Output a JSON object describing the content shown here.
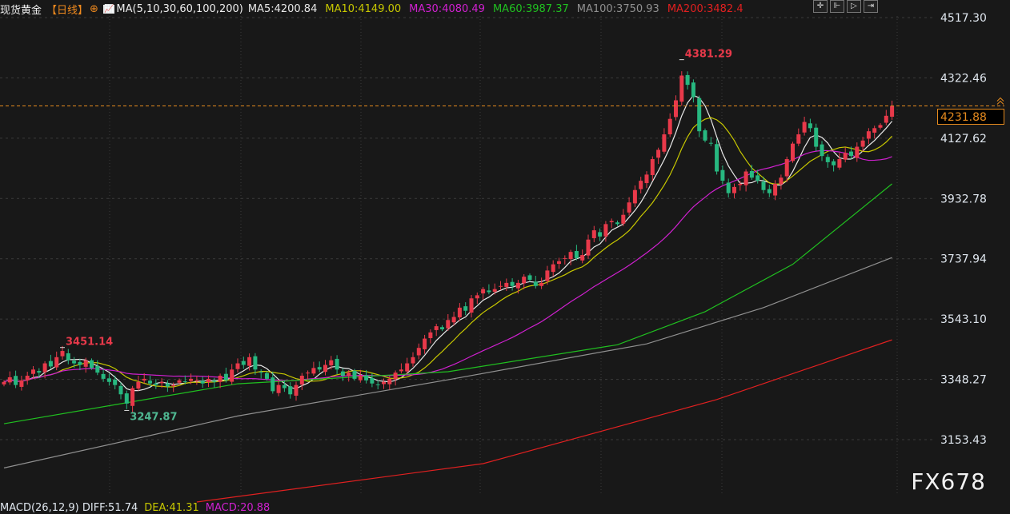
{
  "header": {
    "instrument": "现货黄金",
    "period": "【日线】",
    "ma_label": "MA(5,10,30,60,100,200)",
    "ma": [
      {
        "text": "MA5:4200.84",
        "color": "#e8e8e8"
      },
      {
        "text": "MA10:4149.00",
        "color": "#c8c800"
      },
      {
        "text": "MA30:4080.49",
        "color": "#d020d0"
      },
      {
        "text": "MA60:3987.37",
        "color": "#20c020"
      },
      {
        "text": "MA100:3750.93",
        "color": "#909090"
      },
      {
        "text": "MA200:3482.4",
        "color": "#e02020"
      }
    ]
  },
  "toolbar": {
    "buttons": [
      "crosshair",
      "zoom-left",
      "play",
      "exit"
    ]
  },
  "last_price": "4231.88",
  "watermark": "FX678",
  "macd": [
    {
      "text": "MACD(26,12,9) DIFF:51.74",
      "color": "#dfe6ee"
    },
    {
      "text": "DEA:41.31",
      "color": "#c8c800"
    },
    {
      "text": "MACD:20.88",
      "color": "#d020d0"
    }
  ],
  "chart_data": {
    "type": "candlestick",
    "y_ticks": [
      "4517.30",
      "4322.46",
      "4127.62",
      "3932.78",
      "3737.94",
      "3543.10",
      "3348.27",
      "3153.43"
    ],
    "ylim": [
      3153.43,
      4517.3
    ],
    "up_color": "#e8394a",
    "down_color": "#27b880",
    "annotations": [
      {
        "text": "4381.29",
        "index": 116,
        "color": "#e8394a",
        "type": "high"
      },
      {
        "text": "3451.14",
        "index": 10,
        "color": "#e8394a",
        "type": "high"
      },
      {
        "text": "3247.87",
        "index": 21,
        "color": "#4fb892",
        "type": "low"
      }
    ],
    "closes": [
      3340,
      3355,
      3330,
      3345,
      3360,
      3380,
      3370,
      3400,
      3390,
      3420,
      3440,
      3410,
      3400,
      3395,
      3410,
      3385,
      3370,
      3350,
      3340,
      3330,
      3300,
      3270,
      3320,
      3340,
      3350,
      3335,
      3330,
      3340,
      3325,
      3330,
      3345,
      3340,
      3350,
      3345,
      3335,
      3350,
      3340,
      3360,
      3345,
      3380,
      3400,
      3395,
      3420,
      3380,
      3370,
      3350,
      3310,
      3330,
      3320,
      3300,
      3330,
      3360,
      3370,
      3385,
      3380,
      3395,
      3410,
      3380,
      3360,
      3370,
      3350,
      3360,
      3345,
      3335,
      3330,
      3340,
      3350,
      3370,
      3380,
      3400,
      3420,
      3450,
      3480,
      3500,
      3520,
      3510,
      3540,
      3550,
      3580,
      3570,
      3610,
      3620,
      3640,
      3630,
      3640,
      3650,
      3660,
      3650,
      3660,
      3680,
      3670,
      3650,
      3660,
      3700,
      3720,
      3730,
      3740,
      3760,
      3740,
      3750,
      3800,
      3830,
      3810,
      3850,
      3860,
      3850,
      3880,
      3920,
      3960,
      3990,
      4010,
      4060,
      4090,
      4140,
      4190,
      4250,
      4330,
      4300,
      4260,
      4150,
      4120,
      4110,
      4020,
      3990,
      3950,
      3970,
      3980,
      4020,
      4000,
      3990,
      3960,
      3950,
      3980,
      4000,
      4060,
      4110,
      4140,
      4180,
      4160,
      4100,
      4070,
      4050,
      4040,
      4060,
      4080,
      4070,
      4100,
      4120,
      4150,
      4160,
      4170,
      4200,
      4231.88
    ],
    "ma_lines": [
      {
        "name": "MA5",
        "color": "#e8e8e8",
        "period": 5
      },
      {
        "name": "MA10",
        "color": "#c8c800",
        "period": 10
      },
      {
        "name": "MA30",
        "color": "#d020d0",
        "period": 30
      },
      {
        "name": "MA60",
        "color": "#20c020",
        "points": [
          [
            0,
            3205
          ],
          [
            40,
            3334
          ],
          [
            76,
            3373
          ],
          [
            105,
            3460
          ],
          [
            120,
            3567
          ],
          [
            135,
            3720
          ],
          [
            152,
            3980
          ]
        ]
      },
      {
        "name": "MA100",
        "color": "#909090",
        "points": [
          [
            0,
            3062
          ],
          [
            40,
            3230
          ],
          [
            76,
            3347
          ],
          [
            110,
            3463
          ],
          [
            130,
            3580
          ],
          [
            152,
            3742
          ]
        ]
      },
      {
        "name": "MA200",
        "color": "#e02020",
        "points": [
          [
            33,
            2952
          ],
          [
            82,
            3076
          ],
          [
            122,
            3283
          ],
          [
            152,
            3476
          ]
        ]
      }
    ]
  }
}
